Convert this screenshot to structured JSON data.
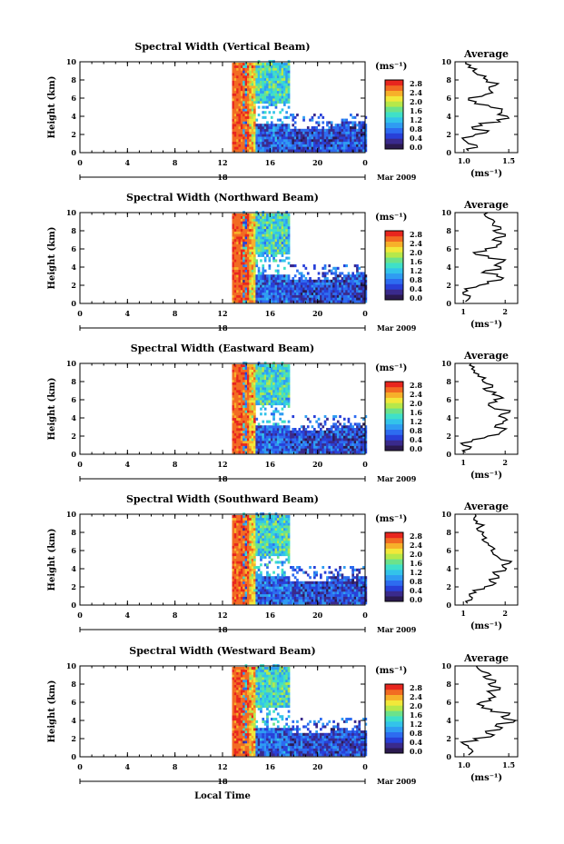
{
  "chart_data": [
    {
      "type": "heatmap",
      "title": "Spectral Width (Vertical Beam)",
      "ylabel": "Height (km)",
      "xlim": [
        0,
        24
      ],
      "ylim": [
        0,
        10
      ],
      "xticks": [
        "0",
        "4",
        "8",
        "12",
        "16",
        "20",
        "0"
      ],
      "yticks": [
        "0",
        "2",
        "4",
        "6",
        "8",
        "10"
      ],
      "date_label": "Mar 2009",
      "date_marker": "18",
      "colorbar": {
        "unit": "(ms⁻¹)",
        "ticks": [
          "0.0",
          "0.4",
          "0.8",
          "1.2",
          "1.6",
          "2.0",
          "2.4",
          "2.8"
        ]
      },
      "average": {
        "title": "Average",
        "xlabel": "(ms⁻¹)",
        "xticks": [
          "1.0",
          "1.5"
        ],
        "xlim": [
          0.9,
          1.6
        ],
        "profile": [
          [
            0.2,
            1.05
          ],
          [
            0.6,
            1.15
          ],
          [
            1.0,
            1.05
          ],
          [
            1.4,
            1.0
          ],
          [
            1.8,
            1.1
          ],
          [
            2.2,
            1.25
          ],
          [
            2.6,
            1.1
          ],
          [
            3.0,
            1.2
          ],
          [
            3.4,
            1.4
          ],
          [
            3.8,
            1.5
          ],
          [
            4.2,
            1.38
          ],
          [
            4.6,
            1.42
          ],
          [
            5.0,
            1.3
          ],
          [
            5.4,
            1.12
          ],
          [
            5.8,
            1.05
          ],
          [
            6.2,
            1.2
          ],
          [
            6.6,
            1.32
          ],
          [
            7.0,
            1.28
          ],
          [
            7.4,
            1.35
          ],
          [
            7.8,
            1.25
          ],
          [
            8.2,
            1.22
          ],
          [
            8.6,
            1.15
          ],
          [
            9.0,
            1.1
          ],
          [
            9.4,
            1.05
          ],
          [
            9.8,
            1.02
          ]
        ]
      }
    },
    {
      "type": "heatmap",
      "title": "Spectral Width (Northward Beam)",
      "ylabel": "Height (km)",
      "xlim": [
        0,
        24
      ],
      "ylim": [
        0,
        10
      ],
      "xticks": [
        "0",
        "4",
        "8",
        "12",
        "16",
        "20",
        "0"
      ],
      "yticks": [
        "0",
        "2",
        "4",
        "6",
        "8",
        "10"
      ],
      "date_label": "Mar 2009",
      "date_marker": "18",
      "colorbar": {
        "unit": "(ms⁻¹)",
        "ticks": [
          "0.0",
          "0.4",
          "0.8",
          "1.2",
          "1.6",
          "2.0",
          "2.4",
          "2.8"
        ]
      },
      "average": {
        "title": "Average",
        "xlabel": "(ms⁻¹)",
        "xticks": [
          "1",
          "2"
        ],
        "xlim": [
          0.8,
          2.3
        ],
        "profile": [
          [
            0.2,
            1.05
          ],
          [
            0.6,
            1.15
          ],
          [
            1.0,
            1.0
          ],
          [
            1.4,
            1.1
          ],
          [
            1.8,
            1.3
          ],
          [
            2.2,
            1.6
          ],
          [
            2.6,
            1.9
          ],
          [
            3.0,
            1.8
          ],
          [
            3.4,
            1.45
          ],
          [
            3.8,
            1.9
          ],
          [
            4.2,
            1.75
          ],
          [
            4.6,
            1.95
          ],
          [
            5.0,
            1.6
          ],
          [
            5.4,
            1.3
          ],
          [
            5.8,
            1.55
          ],
          [
            6.2,
            1.8
          ],
          [
            6.6,
            1.9
          ],
          [
            7.0,
            1.7
          ],
          [
            7.4,
            2.0
          ],
          [
            7.8,
            1.8
          ],
          [
            8.2,
            1.9
          ],
          [
            8.6,
            1.7
          ],
          [
            9.0,
            1.75
          ],
          [
            9.4,
            1.6
          ],
          [
            9.8,
            1.5
          ]
        ]
      }
    },
    {
      "type": "heatmap",
      "title": "Spectral Width (Eastward Beam)",
      "ylabel": "Height (km)",
      "xlim": [
        0,
        24
      ],
      "ylim": [
        0,
        10
      ],
      "xticks": [
        "0",
        "4",
        "8",
        "12",
        "16",
        "20",
        "0"
      ],
      "yticks": [
        "0",
        "2",
        "4",
        "6",
        "8",
        "10"
      ],
      "date_label": "Mar 2009",
      "date_marker": "18",
      "colorbar": {
        "unit": "(ms⁻¹)",
        "ticks": [
          "0.0",
          "0.4",
          "0.8",
          "1.2",
          "1.6",
          "2.0",
          "2.4",
          "2.8"
        ]
      },
      "average": {
        "title": "Average",
        "xlabel": "(ms⁻¹)",
        "xticks": [
          "1",
          "2"
        ],
        "xlim": [
          0.8,
          2.3
        ],
        "profile": [
          [
            0.2,
            1.05
          ],
          [
            0.6,
            1.15
          ],
          [
            1.0,
            1.0
          ],
          [
            1.4,
            1.2
          ],
          [
            1.8,
            1.5
          ],
          [
            2.2,
            1.85
          ],
          [
            2.6,
            1.95
          ],
          [
            3.0,
            1.75
          ],
          [
            3.4,
            1.95
          ],
          [
            3.8,
            2.05
          ],
          [
            4.2,
            1.85
          ],
          [
            4.6,
            2.1
          ],
          [
            5.0,
            1.75
          ],
          [
            5.4,
            1.6
          ],
          [
            5.8,
            1.8
          ],
          [
            6.2,
            1.95
          ],
          [
            6.6,
            1.7
          ],
          [
            7.0,
            1.55
          ],
          [
            7.4,
            1.7
          ],
          [
            7.8,
            1.55
          ],
          [
            8.2,
            1.45
          ],
          [
            8.6,
            1.35
          ],
          [
            9.0,
            1.25
          ],
          [
            9.4,
            1.2
          ],
          [
            9.8,
            1.15
          ]
        ]
      }
    },
    {
      "type": "heatmap",
      "title": "Spectral Width (Southward Beam)",
      "ylabel": "Height (km)",
      "xlim": [
        0,
        24
      ],
      "ylim": [
        0,
        10
      ],
      "xticks": [
        "0",
        "4",
        "8",
        "12",
        "16",
        "20",
        "0"
      ],
      "yticks": [
        "0",
        "2",
        "4",
        "6",
        "8",
        "10"
      ],
      "date_label": "Mar 2009",
      "date_marker": "18",
      "colorbar": {
        "unit": "(ms⁻¹)",
        "ticks": [
          "0.0",
          "0.4",
          "0.8",
          "1.2",
          "1.6",
          "2.0",
          "2.4",
          "2.8"
        ]
      },
      "average": {
        "title": "Average",
        "xlabel": "(ms⁻¹)",
        "xticks": [
          "1",
          "2"
        ],
        "xlim": [
          0.8,
          2.3
        ],
        "profile": [
          [
            0.2,
            1.1
          ],
          [
            0.6,
            1.2
          ],
          [
            1.0,
            1.15
          ],
          [
            1.4,
            1.3
          ],
          [
            1.8,
            1.5
          ],
          [
            2.2,
            1.7
          ],
          [
            2.6,
            1.65
          ],
          [
            3.0,
            1.85
          ],
          [
            3.4,
            1.75
          ],
          [
            3.8,
            2.0
          ],
          [
            4.2,
            1.95
          ],
          [
            4.6,
            2.1
          ],
          [
            5.0,
            1.9
          ],
          [
            5.4,
            1.8
          ],
          [
            5.8,
            1.7
          ],
          [
            6.2,
            1.75
          ],
          [
            6.6,
            1.6
          ],
          [
            7.0,
            1.5
          ],
          [
            7.4,
            1.55
          ],
          [
            7.8,
            1.45
          ],
          [
            8.2,
            1.35
          ],
          [
            8.6,
            1.4
          ],
          [
            9.0,
            1.3
          ],
          [
            9.4,
            1.25
          ],
          [
            9.8,
            1.3
          ]
        ]
      }
    },
    {
      "type": "heatmap",
      "title": "Spectral Width (Westward Beam)",
      "ylabel": "Height (km)",
      "xlabel": "Local Time",
      "xlim": [
        0,
        24
      ],
      "ylim": [
        0,
        10
      ],
      "xticks": [
        "0",
        "4",
        "8",
        "12",
        "16",
        "20",
        "0"
      ],
      "yticks": [
        "0",
        "2",
        "4",
        "6",
        "8",
        "10"
      ],
      "date_label": "Mar 2009",
      "date_marker": "18",
      "colorbar": {
        "unit": "(ms⁻¹)",
        "ticks": [
          "0.0",
          "0.4",
          "0.8",
          "1.2",
          "1.6",
          "2.0",
          "2.4",
          "2.8"
        ]
      },
      "average": {
        "title": "Average",
        "xlabel": "(ms⁻¹)",
        "xticks": [
          "1.0",
          "1.5"
        ],
        "xlim": [
          0.9,
          1.6
        ],
        "profile": [
          [
            0.2,
            1.05
          ],
          [
            0.6,
            1.1
          ],
          [
            1.0,
            1.05
          ],
          [
            1.4,
            1.0
          ],
          [
            1.8,
            1.15
          ],
          [
            2.2,
            1.3
          ],
          [
            2.6,
            1.25
          ],
          [
            3.0,
            1.4
          ],
          [
            3.4,
            1.35
          ],
          [
            3.8,
            1.55
          ],
          [
            4.2,
            1.45
          ],
          [
            4.6,
            1.5
          ],
          [
            5.0,
            1.3
          ],
          [
            5.4,
            1.2
          ],
          [
            5.8,
            1.15
          ],
          [
            6.2,
            1.3
          ],
          [
            6.6,
            1.35
          ],
          [
            7.0,
            1.3
          ],
          [
            7.4,
            1.4
          ],
          [
            7.8,
            1.3
          ],
          [
            8.2,
            1.35
          ],
          [
            8.6,
            1.25
          ],
          [
            9.0,
            1.3
          ],
          [
            9.4,
            1.2
          ],
          [
            9.8,
            1.15
          ]
        ]
      }
    }
  ]
}
